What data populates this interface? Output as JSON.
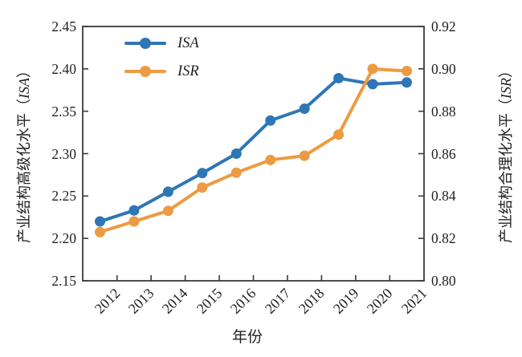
{
  "figure": {
    "axes": {
      "left": {
        "title_prefix": "产业结构高级化水平（",
        "title_var": "ISA",
        "title_suffix": "）"
      },
      "right": {
        "title_prefix": "产业结构合理化水平（",
        "title_var": "ISR",
        "title_suffix": "）"
      },
      "x": {
        "title": "年份"
      }
    },
    "legend": {
      "items": [
        {
          "label": "ISA",
          "color": "#2E76B6"
        },
        {
          "label": "ISR",
          "color": "#EC9B42"
        }
      ]
    },
    "colors": {
      "isa_blue": "#2E76B6",
      "isr_orange": "#EC9B42",
      "axis_line": "#3a3a3a",
      "text": "#1f1f1f"
    }
  },
  "chart_data": {
    "type": "line",
    "x": [
      2012,
      2013,
      2014,
      2015,
      2016,
      2017,
      2018,
      2019,
      2020,
      2021
    ],
    "series": [
      {
        "name": "ISA",
        "axis": "left",
        "color": "#2E76B6",
        "marker": "circle",
        "values": [
          2.22,
          2.233,
          2.255,
          2.277,
          2.3,
          2.339,
          2.353,
          2.389,
          2.382,
          2.384
        ]
      },
      {
        "name": "ISR",
        "axis": "right",
        "color": "#EC9B42",
        "marker": "circle",
        "values": [
          0.823,
          0.828,
          0.833,
          0.844,
          0.851,
          0.857,
          0.859,
          0.869,
          0.9,
          0.899
        ]
      }
    ],
    "title": "",
    "xlabel": "年份",
    "ylabel_left": "产业结构高级化水平（ISA）",
    "ylabel_right": "产业结构合理化水平（ISR）",
    "ylim_left": [
      2.15,
      2.45
    ],
    "yticks_left": [
      2.15,
      2.2,
      2.25,
      2.3,
      2.35,
      2.4,
      2.45
    ],
    "ylim_right": [
      0.8,
      0.92
    ],
    "yticks_right": [
      0.8,
      0.82,
      0.84,
      0.86,
      0.88,
      0.9,
      0.92
    ],
    "x_ticks_between_categories": true,
    "grid": false,
    "legend_position": "upper left inside"
  }
}
